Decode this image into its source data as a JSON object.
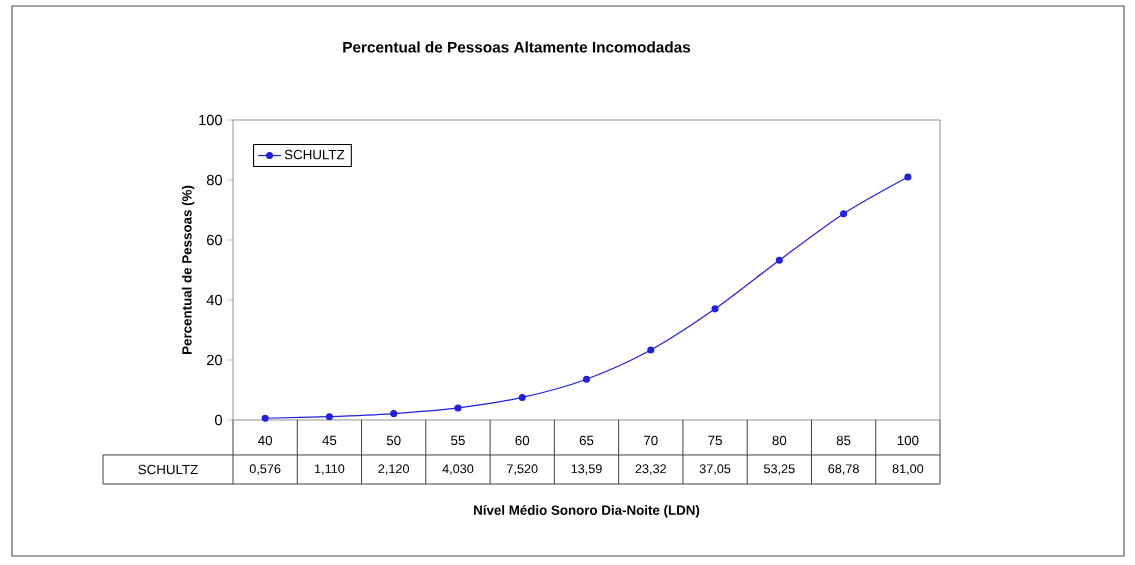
{
  "chart_data": {
    "type": "line",
    "title": "Percentual de Pessoas Altamente Incomodadas",
    "xlabel": "Nível Médio Sonoro Dia-Noite (LDN)",
    "ylabel": "Percentual de Pessoas (%)",
    "categories": [
      "40",
      "45",
      "50",
      "55",
      "60",
      "65",
      "70",
      "75",
      "80",
      "85",
      "100"
    ],
    "series": [
      {
        "name": "SCHULTZ",
        "color": "#2020e0",
        "values": [
          0.576,
          1.11,
          2.12,
          4.03,
          7.52,
          13.59,
          23.32,
          37.05,
          53.25,
          68.78,
          81.0
        ],
        "value_labels": [
          "0,576",
          "1,110",
          "2,120",
          "4,030",
          "7,520",
          "13,59",
          "23,32",
          "37,05",
          "53,25",
          "68,78",
          "81,00"
        ]
      }
    ],
    "ylim": [
      0,
      100
    ],
    "yticks": [
      0,
      20,
      40,
      60,
      80,
      100
    ],
    "legend": "top left",
    "marker": "circle"
  }
}
